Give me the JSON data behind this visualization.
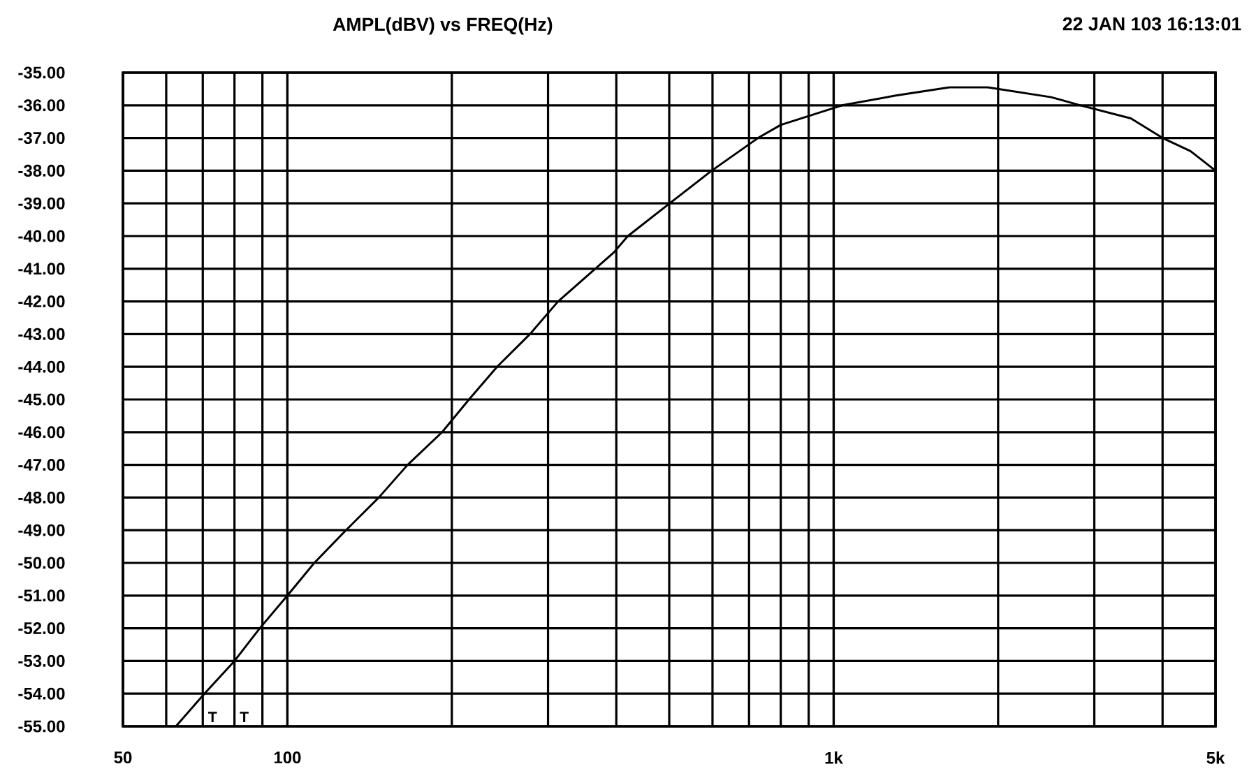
{
  "chart_data": {
    "type": "line",
    "title": "AMPL(dBV) vs FREQ(Hz)",
    "annotations": [
      "22 JAN 103 16:13:01",
      "T",
      "T"
    ],
    "log": "x",
    "grid": true,
    "marker": "none",
    "line_style": "solid",
    "xlim": [
      50,
      5000
    ],
    "ylim": [
      -55,
      -35
    ],
    "xticks": [
      50,
      100,
      {
        "value": 1000,
        "label": "1k"
      },
      {
        "value": 5000,
        "label": "5k"
      }
    ],
    "yticks": [
      {
        "value": -35,
        "label": "-35.00"
      },
      {
        "value": -36,
        "label": "-36.00"
      },
      {
        "value": -37,
        "label": "-37.00"
      },
      {
        "value": -38,
        "label": "-38.00"
      },
      {
        "value": -39,
        "label": "-39.00"
      },
      {
        "value": -40,
        "label": "-40.00"
      },
      {
        "value": -41,
        "label": "-41.00"
      },
      {
        "value": -42,
        "label": "-42.00"
      },
      {
        "value": -43,
        "label": "-43.00"
      },
      {
        "value": -44,
        "label": "-44.00"
      },
      {
        "value": -45,
        "label": "-45.00"
      },
      {
        "value": -46,
        "label": "-46.00"
      },
      {
        "value": -47,
        "label": "-47.00"
      },
      {
        "value": -48,
        "label": "-48.00"
      },
      {
        "value": -49,
        "label": "-49.00"
      },
      {
        "value": -50,
        "label": "-50.00"
      },
      {
        "value": -51,
        "label": "-51.00"
      },
      {
        "value": -52,
        "label": "-52.00"
      },
      {
        "value": -53,
        "label": "-53.00"
      },
      {
        "value": -54,
        "label": "-54.00"
      },
      {
        "value": -55,
        "label": "-55.00"
      }
    ],
    "series": [
      {
        "color": "#000000",
        "x": [
          62.5,
          70.5,
          80,
          89,
          100,
          112,
          128,
          147,
          166,
          192,
          215,
          242,
          278,
          313,
          396,
          420,
          501,
          598,
          727,
          800,
          1036,
          1300,
          1630,
          1750,
          1913,
          2500,
          2830,
          3500,
          4000,
          4500,
          5000
        ],
        "values": [
          -55,
          -54,
          -53,
          -52,
          -51,
          -50,
          -49,
          -48,
          -47,
          -46,
          -45,
          -44,
          -43,
          -42,
          -40.5,
          -40,
          -39,
          -38,
          -37,
          -36.6,
          -36,
          -35.7,
          -35.45,
          -35.45,
          -35.45,
          -35.75,
          -36,
          -36.4,
          -37,
          -37.4,
          -38
        ]
      }
    ]
  }
}
